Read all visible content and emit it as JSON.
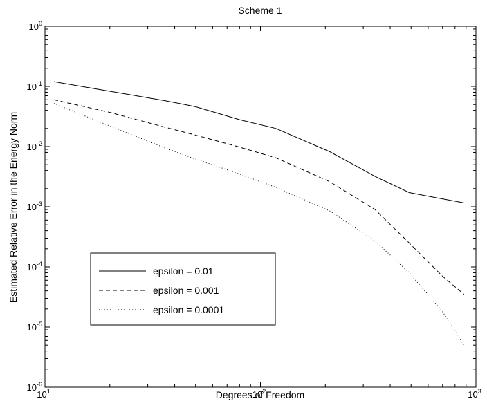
{
  "chart_data": {
    "type": "line",
    "title": "Scheme 1",
    "xlabel": "Degrees of Freedom",
    "ylabel": "Estimated Relative Error in the Energy Norm",
    "xscale": "log",
    "yscale": "log",
    "xlim": [
      10,
      1000
    ],
    "ylim": [
      1e-06,
      1
    ],
    "x_ticks": [
      {
        "base": "10",
        "exp": "1"
      },
      {
        "base": "10",
        "exp": "2"
      },
      {
        "base": "10",
        "exp": "3"
      }
    ],
    "y_ticks": [
      {
        "base": "10",
        "exp": "-6"
      },
      {
        "base": "10",
        "exp": "-5"
      },
      {
        "base": "10",
        "exp": "-4"
      },
      {
        "base": "10",
        "exp": "-3"
      },
      {
        "base": "10",
        "exp": "-2"
      },
      {
        "base": "10",
        "exp": "-1"
      },
      {
        "base": "10",
        "exp": "0"
      }
    ],
    "grid": false,
    "legend_position": "lower-left",
    "series": [
      {
        "name": "epsilon = 0.01",
        "style": "solid",
        "color": "#000000",
        "x": [
          11,
          20,
          36,
          50,
          80,
          118,
          210,
          340,
          490,
          700,
          880
        ],
        "y": [
          0.12,
          0.083,
          0.058,
          0.046,
          0.028,
          0.02,
          0.0082,
          0.0032,
          0.00172,
          0.00135,
          0.00116
        ]
      },
      {
        "name": "epsilon = 0.001",
        "style": "dashed",
        "color": "#000000",
        "x": [
          11,
          20,
          36,
          50,
          80,
          118,
          210,
          340,
          490,
          700,
          880
        ],
        "y": [
          0.06,
          0.037,
          0.021,
          0.0155,
          0.0098,
          0.0065,
          0.0026,
          0.0009,
          0.00025,
          7e-05,
          3.5e-05
        ]
      },
      {
        "name": "epsilon = 0.0001",
        "style": "dotted",
        "color": "#000000",
        "x": [
          11,
          20,
          36,
          50,
          80,
          118,
          210,
          340,
          490,
          700,
          880
        ],
        "y": [
          0.052,
          0.022,
          0.0095,
          0.0062,
          0.0035,
          0.0021,
          0.00085,
          0.00027,
          8e-05,
          1.8e-05,
          5e-06
        ]
      }
    ]
  }
}
